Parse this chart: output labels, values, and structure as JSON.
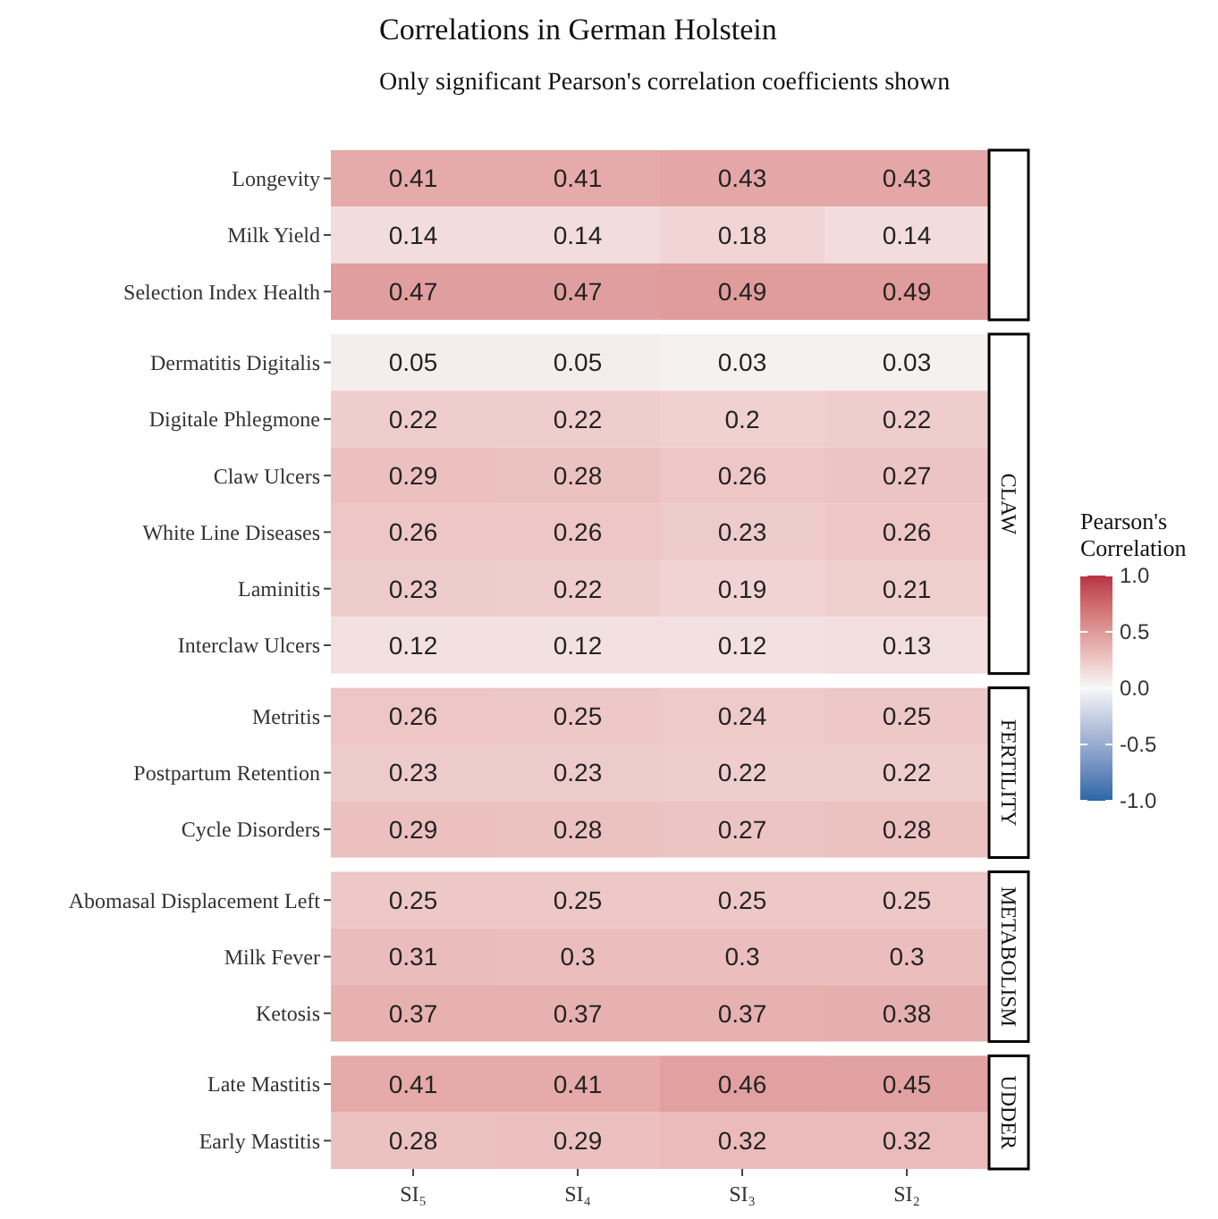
{
  "chart_data": [
    {
      "type": "heatmap",
      "title": "Correlations in German Holstein",
      "subtitle": "Only significant Pearson's correlation coefficients shown",
      "categories": [
        null,
        null,
        null,
        null
      ],
      "y_categories": [
        "Longevity",
        "Milk Yield",
        "Selection Index Health"
      ],
      "cells": [
        [
          0.41,
          0.41,
          0.43,
          0.43
        ],
        [
          0.14,
          0.14,
          0.18,
          0.14
        ],
        [
          0.47,
          0.47,
          0.49,
          0.49
        ]
      ],
      "data_labels": true,
      "clabel": "Pearson's Correlation",
      "clim": [
        -1,
        1
      ],
      "cticks": [
        {
          "value": 1,
          "label": "1.0"
        },
        {
          "value": 0.5,
          "label": "0.5"
        },
        {
          "value": 0,
          "label": "0.0"
        },
        {
          "value": -0.5,
          "label": "-0.5"
        },
        {
          "value": -1,
          "label": "-1.0"
        }
      ]
    },
    {
      "type": "heatmap",
      "y2label": "CLAW",
      "categories": [
        null,
        null,
        null,
        null
      ],
      "y_categories": [
        "Dermatitis Digitalis",
        "Digitale Phlegmone",
        "Claw Ulcers",
        "White Line Diseases",
        "Laminitis",
        "Interclaw Ulcers"
      ],
      "cells": [
        [
          0.05,
          0.05,
          0.03,
          0.03
        ],
        [
          0.22,
          0.22,
          0.2,
          0.22
        ],
        [
          0.29,
          0.28,
          0.26,
          0.27
        ],
        [
          0.26,
          0.26,
          0.23,
          0.26
        ],
        [
          0.23,
          0.22,
          0.19,
          0.21
        ],
        [
          0.12,
          0.12,
          0.12,
          0.13
        ]
      ],
      "data_labels": true
    },
    {
      "type": "heatmap",
      "y2label": "FERTILITY",
      "categories": [
        null,
        null,
        null,
        null
      ],
      "y_categories": [
        "Metritis",
        "Postpartum Retention",
        "Cycle Disorders"
      ],
      "cells": [
        [
          0.26,
          0.25,
          0.24,
          0.25
        ],
        [
          0.23,
          0.23,
          0.22,
          0.22
        ],
        [
          0.29,
          0.28,
          0.27,
          0.28
        ]
      ],
      "data_labels": true
    },
    {
      "type": "heatmap",
      "y2label": "METABOLISM",
      "categories": [
        null,
        null,
        null,
        null
      ],
      "y_categories": [
        "Abomasal Displacement Left",
        "Milk Fever",
        "Ketosis"
      ],
      "cells": [
        [
          0.25,
          0.25,
          0.25,
          0.25
        ],
        [
          0.31,
          0.3,
          0.3,
          0.3
        ],
        [
          0.37,
          0.37,
          0.37,
          0.38
        ]
      ],
      "data_labels": true
    },
    {
      "type": "heatmap",
      "y2label": "UDDER",
      "categories": [
        "SI₅",
        "SI₄",
        "SI₃",
        "SI₂"
      ],
      "y_categories": [
        "Late Mastitis",
        "Early Mastitis"
      ],
      "cells": [
        [
          0.41,
          0.41,
          0.46,
          0.45
        ],
        [
          0.28,
          0.29,
          0.32,
          0.32
        ]
      ],
      "data_labels": true
    }
  ]
}
